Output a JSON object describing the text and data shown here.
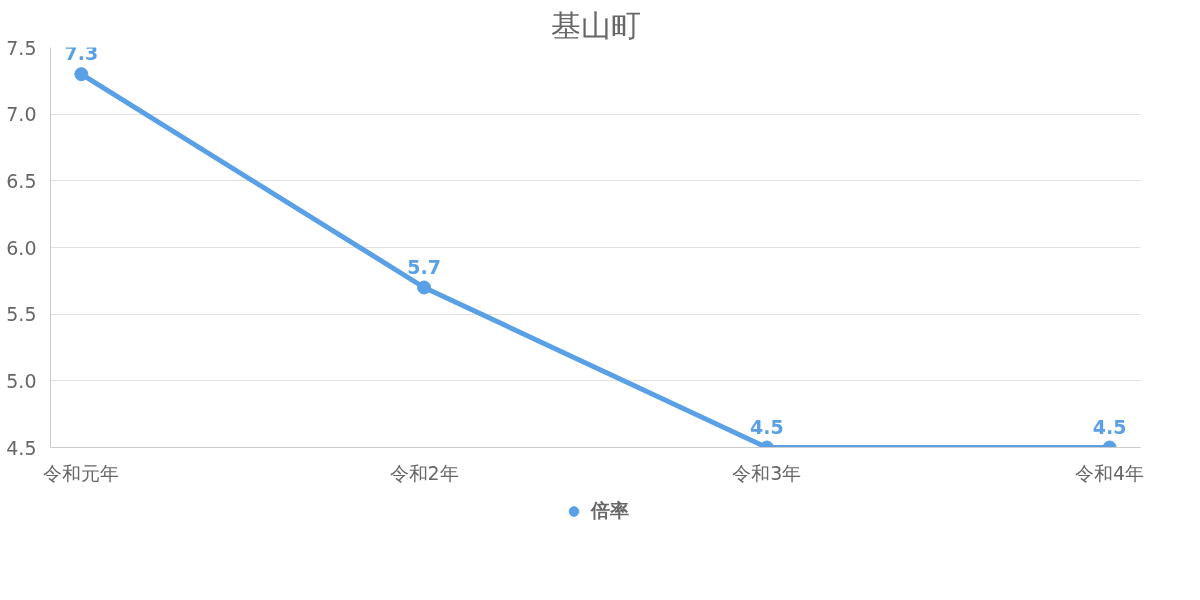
{
  "chart_data": {
    "type": "line",
    "title": "基山町",
    "categories": [
      "令和元年",
      "令和2年",
      "令和3年",
      "令和4年"
    ],
    "series": [
      {
        "name": "倍率",
        "color": "#5aa0e6",
        "values": [
          7.3,
          5.7,
          4.5,
          4.5
        ]
      }
    ],
    "ylim": [
      4.5,
      7.5
    ],
    "yticks": [
      4.5,
      {
        "value": 5,
        "label": "5.0"
      },
      5.5,
      {
        "value": 6,
        "label": "6.0"
      },
      6.5,
      {
        "value": 7,
        "label": "7.0"
      },
      7.5
    ],
    "grid": "y",
    "legend": "bottom",
    "marker": "circle",
    "line_style": "solid",
    "data_labels": true
  }
}
